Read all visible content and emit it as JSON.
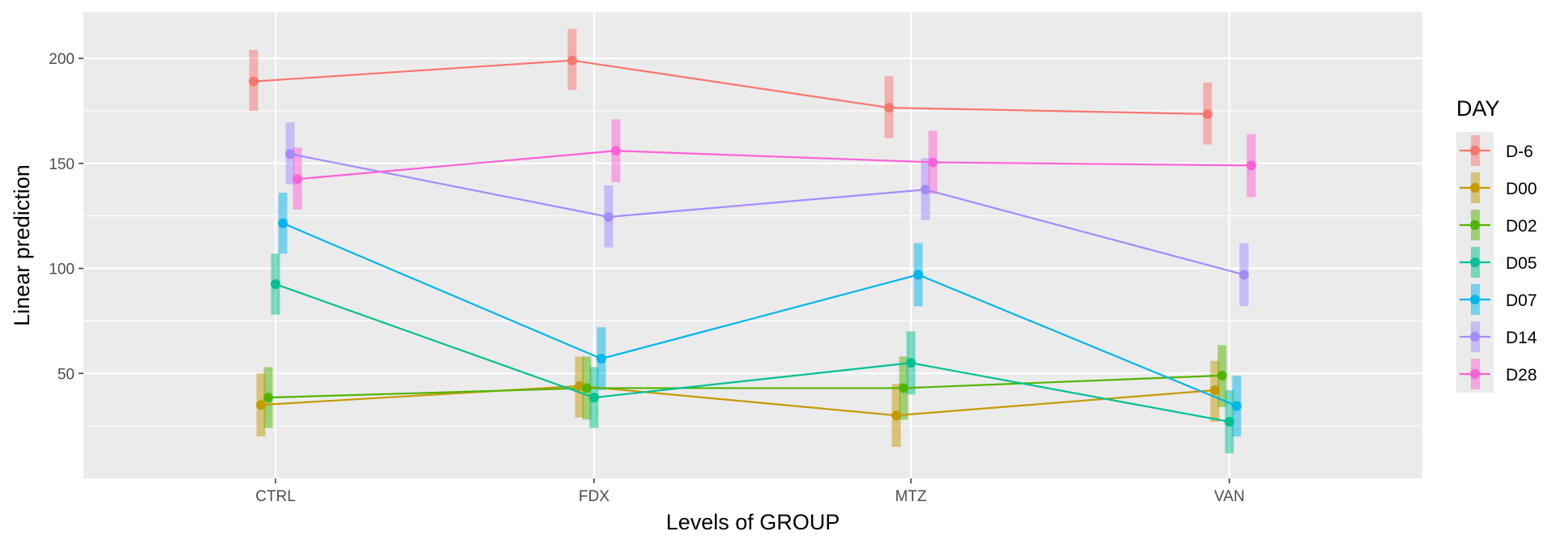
{
  "chart_data": {
    "type": "line",
    "xlabel": "Levels of GROUP",
    "ylabel": "Linear prediction",
    "categories": [
      "CTRL",
      "FDX",
      "MTZ",
      "VAN"
    ],
    "y_ticks": [
      50,
      100,
      150,
      200
    ],
    "ylim": [
      0,
      222
    ],
    "grid": true,
    "legend": {
      "title": "DAY",
      "position": "right"
    },
    "series": [
      {
        "name": "D-6",
        "color": "#F8766D",
        "values": [
          189,
          199,
          176.5,
          173.5
        ],
        "lower": [
          175,
          185,
          162,
          159
        ],
        "upper": [
          204,
          214,
          191.5,
          188.5
        ]
      },
      {
        "name": "D00",
        "color": "#C49A00",
        "values": [
          35,
          44,
          30,
          42
        ],
        "lower": [
          20,
          29,
          15,
          27
        ],
        "upper": [
          50,
          58,
          45,
          56
        ]
      },
      {
        "name": "D02",
        "color": "#53B400",
        "values": [
          38.5,
          43,
          43,
          49
        ],
        "lower": [
          24,
          28,
          28,
          34
        ],
        "upper": [
          53,
          58,
          58,
          63.5
        ]
      },
      {
        "name": "D05",
        "color": "#00C094",
        "values": [
          92.5,
          38.5,
          55,
          27
        ],
        "lower": [
          78,
          24,
          40,
          12
        ],
        "upper": [
          107,
          53,
          70,
          42
        ]
      },
      {
        "name": "D07",
        "color": "#00B6EB",
        "values": [
          121.5,
          57,
          97,
          34.5
        ],
        "lower": [
          107,
          42,
          82,
          20
        ],
        "upper": [
          136,
          72,
          112,
          49
        ]
      },
      {
        "name": "D14",
        "color": "#A58AFF",
        "values": [
          154.5,
          124.5,
          137.5,
          97
        ],
        "lower": [
          140,
          110,
          123,
          82
        ],
        "upper": [
          169.5,
          139.5,
          152.5,
          112
        ]
      },
      {
        "name": "D28",
        "color": "#FB61D7",
        "values": [
          142.5,
          156,
          150.5,
          149
        ],
        "lower": [
          128,
          141,
          135.5,
          134
        ],
        "upper": [
          157.5,
          171,
          165.5,
          164
        ]
      }
    ]
  }
}
